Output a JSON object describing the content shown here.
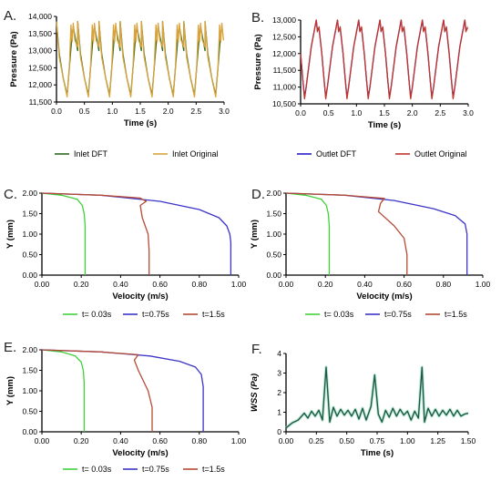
{
  "figure": {
    "panels": [
      {
        "letter": "A."
      },
      {
        "letter": "B."
      },
      {
        "letter": "C."
      },
      {
        "letter": "D."
      },
      {
        "letter": "E."
      },
      {
        "letter": "F."
      }
    ]
  },
  "chart_data": [
    {
      "type": "line",
      "panel": "A.",
      "xlabel": "Time (s)",
      "ylabel": "Pressure (Pa)",
      "xlim": [
        0,
        3.0
      ],
      "ylim": [
        11500,
        14000
      ],
      "xticks": [
        0,
        0.5,
        1.0,
        1.5,
        2.0,
        2.5,
        3.0
      ],
      "xtick_labels": [
        "0.0",
        "0.5",
        "1.0",
        "1.5",
        "2.0",
        "2.5",
        "3.0"
      ],
      "yticks": [
        11500,
        12000,
        12500,
        13000,
        13500,
        14000
      ],
      "ytick_labels": [
        "11,500",
        "12,000",
        "12,500",
        "13,000",
        "13,500",
        "14,000"
      ],
      "legend_position": "bottom",
      "period": 0.38,
      "series": [
        {
          "name": "Inlet DFT",
          "color": "#2e6b1f",
          "x": [
            0,
            0.05,
            0.12,
            0.19,
            0.23,
            0.27,
            0.3,
            0.38
          ],
          "y": [
            13850,
            12900,
            12200,
            11700,
            12500,
            13300,
            13700,
            13000
          ]
        },
        {
          "name": "Inlet Original",
          "color": "#d9a23a",
          "x": [
            0,
            0.05,
            0.12,
            0.19,
            0.23,
            0.26,
            0.28,
            0.3,
            0.33,
            0.38
          ],
          "y": [
            13850,
            12800,
            12200,
            11650,
            12500,
            13750,
            13250,
            13800,
            13300,
            13100
          ]
        }
      ]
    },
    {
      "type": "line",
      "panel": "B.",
      "xlabel": "Time (s)",
      "ylabel": "Pressure (Pa)",
      "xlim": [
        0,
        3.0
      ],
      "ylim": [
        10500,
        13000
      ],
      "xticks": [
        0,
        0.5,
        1.0,
        1.5,
        2.0,
        2.5,
        3.0
      ],
      "xtick_labels": [
        "0.0",
        "0.5",
        "1.0",
        "1.5",
        "2.0",
        "2.5",
        "3.0"
      ],
      "yticks": [
        10500,
        11000,
        11500,
        12000,
        12500,
        13000
      ],
      "ytick_labels": [
        "10,500",
        "11,000",
        "11,500",
        "12,000",
        "12,500",
        "13,000"
      ],
      "legend_position": "bottom",
      "period": 0.38,
      "series": [
        {
          "name": "Outlet DFT",
          "color": "#2b1ec9",
          "x": [
            0,
            0.04,
            0.07,
            0.1,
            0.19,
            0.28,
            0.3,
            0.33,
            0.38
          ],
          "y": [
            12000,
            11200,
            10700,
            11000,
            12200,
            13000,
            12700,
            12750,
            12000
          ]
        },
        {
          "name": "Outlet Original",
          "color": "#c2352b",
          "x": [
            0,
            0.04,
            0.07,
            0.1,
            0.19,
            0.28,
            0.3,
            0.33,
            0.38
          ],
          "y": [
            12000,
            11200,
            10650,
            11000,
            12200,
            13000,
            12650,
            12800,
            12000
          ]
        }
      ]
    },
    {
      "type": "line",
      "panel": "C.",
      "xlabel": "Velocity (m/s)",
      "ylabel": "Y (mm)",
      "xlim": [
        0,
        1.0
      ],
      "ylim": [
        0,
        2.0
      ],
      "xticks": [
        0,
        0.2,
        0.4,
        0.6,
        0.8,
        1.0
      ],
      "xtick_labels": [
        "0.00",
        "0.20",
        "0.40",
        "0.60",
        "0.80",
        "1.00"
      ],
      "yticks": [
        0,
        0.5,
        1.0,
        1.5,
        2.0
      ],
      "ytick_labels": [
        "0.00",
        "0.50",
        "1.00",
        "1.50",
        "2.00"
      ],
      "legend_position": "bottom",
      "series": [
        {
          "name": "t= 0.03s",
          "color": "#3fd13a",
          "x": [
            0,
            0.1,
            0.18,
            0.205,
            0.215,
            0.22,
            0.22
          ],
          "y": [
            2.0,
            1.95,
            1.85,
            1.7,
            1.5,
            1.2,
            0
          ]
        },
        {
          "name": "t=0.75s",
          "color": "#3c34c8",
          "x": [
            0,
            0.3,
            0.6,
            0.8,
            0.9,
            0.94,
            0.955,
            0.96,
            0.96
          ],
          "y": [
            2.0,
            1.95,
            1.8,
            1.6,
            1.4,
            1.2,
            1.0,
            0.8,
            0
          ]
        },
        {
          "name": "t=1.5s",
          "color": "#b54b35",
          "x": [
            0,
            0.3,
            0.5,
            0.53,
            0.5,
            0.51,
            0.54,
            0.545,
            0.545
          ],
          "y": [
            2.0,
            1.95,
            1.88,
            1.8,
            1.7,
            1.4,
            1.0,
            0.6,
            0
          ]
        }
      ]
    },
    {
      "type": "line",
      "panel": "D.",
      "xlabel": "Velocity (m/s)",
      "ylabel": "Y (mm)",
      "xlim": [
        0,
        1.0
      ],
      "ylim": [
        0,
        2.0
      ],
      "xticks": [
        0,
        0.2,
        0.4,
        0.6,
        0.8,
        1.0
      ],
      "xtick_labels": [
        "0.00",
        "0.20",
        "0.40",
        "0.60",
        "0.80",
        "1.00"
      ],
      "yticks": [
        0,
        0.5,
        1.0,
        1.5,
        2.0
      ],
      "ytick_labels": [
        "0.00",
        "0.50",
        "1.00",
        "1.50",
        "2.00"
      ],
      "legend_position": "bottom",
      "series": [
        {
          "name": "t= 0.03s",
          "color": "#3fd13a",
          "x": [
            0,
            0.1,
            0.18,
            0.205,
            0.215,
            0.22,
            0.22
          ],
          "y": [
            2.0,
            1.95,
            1.85,
            1.7,
            1.5,
            1.2,
            0
          ]
        },
        {
          "name": "t=0.75s",
          "color": "#3c34c8",
          "x": [
            0,
            0.3,
            0.55,
            0.75,
            0.86,
            0.91,
            0.92,
            0.92
          ],
          "y": [
            2.0,
            1.95,
            1.82,
            1.62,
            1.45,
            1.25,
            1.0,
            0
          ]
        },
        {
          "name": "t=1.5s",
          "color": "#b54b35",
          "x": [
            0,
            0.3,
            0.5,
            0.48,
            0.47,
            0.55,
            0.6,
            0.615,
            0.615
          ],
          "y": [
            2.0,
            1.95,
            1.87,
            1.75,
            1.55,
            1.2,
            0.9,
            0.5,
            0
          ]
        }
      ]
    },
    {
      "type": "line",
      "panel": "E.",
      "xlabel": "Velocity (m/s)",
      "ylabel": "Y (mm)",
      "xlim": [
        0,
        1.0
      ],
      "ylim": [
        0,
        2.0
      ],
      "xticks": [
        0,
        0.2,
        0.4,
        0.6,
        0.8,
        1.0
      ],
      "xtick_labels": [
        "0.00",
        "0.20",
        "0.40",
        "0.60",
        "0.80",
        "1.00"
      ],
      "yticks": [
        0,
        0.5,
        1.0,
        1.5,
        2.0
      ],
      "ytick_labels": [
        "0.00",
        "0.50",
        "1.00",
        "1.50",
        "2.00"
      ],
      "legend_position": "bottom",
      "series": [
        {
          "name": "t= 0.03s",
          "color": "#3fd13a",
          "x": [
            0,
            0.1,
            0.17,
            0.2,
            0.21,
            0.215,
            0.215
          ],
          "y": [
            2.0,
            1.95,
            1.85,
            1.7,
            1.5,
            1.2,
            0
          ]
        },
        {
          "name": "t=0.75s",
          "color": "#3c34c8",
          "x": [
            0,
            0.3,
            0.55,
            0.7,
            0.78,
            0.81,
            0.82,
            0.82
          ],
          "y": [
            2.0,
            1.95,
            1.85,
            1.72,
            1.58,
            1.4,
            1.1,
            0
          ]
        },
        {
          "name": "t=1.5s",
          "color": "#b54b35",
          "x": [
            0,
            0.3,
            0.49,
            0.47,
            0.49,
            0.54,
            0.56,
            0.56
          ],
          "y": [
            2.0,
            1.95,
            1.88,
            1.75,
            1.5,
            1.0,
            0.6,
            0
          ]
        }
      ]
    },
    {
      "type": "line",
      "panel": "F.",
      "xlabel": "Time (s)",
      "ylabel": "WSS (Pa)",
      "xlim": [
        0,
        1.5
      ],
      "ylim": [
        0,
        4
      ],
      "xticks": [
        0,
        0.25,
        0.5,
        0.75,
        1.0,
        1.25,
        1.5
      ],
      "xtick_labels": [
        "0.00",
        "0.25",
        "0.50",
        "0.75",
        "1.00",
        "1.25",
        "1.50"
      ],
      "yticks": [
        0,
        1,
        2,
        3,
        4
      ],
      "ytick_labels": [
        "0",
        "1",
        "2",
        "3",
        "4"
      ],
      "series": [
        {
          "name": "",
          "color": "#1e5b45",
          "x": [
            0,
            0.05,
            0.1,
            0.15,
            0.18,
            0.21,
            0.24,
            0.27,
            0.3,
            0.33,
            0.36,
            0.39,
            0.42,
            0.45,
            0.48,
            0.51,
            0.54,
            0.57,
            0.6,
            0.63,
            0.66,
            0.7,
            0.73,
            0.76,
            0.79,
            0.82,
            0.85,
            0.88,
            0.91,
            0.94,
            0.97,
            1.0,
            1.03,
            1.06,
            1.09,
            1.12,
            1.14,
            1.17,
            1.2,
            1.23,
            1.26,
            1.29,
            1.32,
            1.35,
            1.38,
            1.41,
            1.44,
            1.47,
            1.5
          ],
          "y": [
            0.2,
            0.45,
            0.6,
            0.95,
            0.7,
            1.05,
            0.8,
            1.1,
            0.6,
            3.3,
            0.5,
            1.25,
            0.8,
            1.15,
            0.85,
            1.1,
            0.8,
            1.15,
            0.65,
            1.2,
            0.6,
            1.3,
            2.9,
            0.9,
            0.5,
            1.1,
            0.75,
            1.2,
            0.8,
            1.15,
            0.85,
            1.05,
            0.6,
            1.05,
            0.7,
            3.3,
            0.5,
            1.2,
            0.8,
            1.15,
            0.8,
            1.1,
            0.85,
            1.15,
            0.8,
            1.1,
            0.8,
            0.9,
            0.95
          ]
        }
      ]
    }
  ]
}
